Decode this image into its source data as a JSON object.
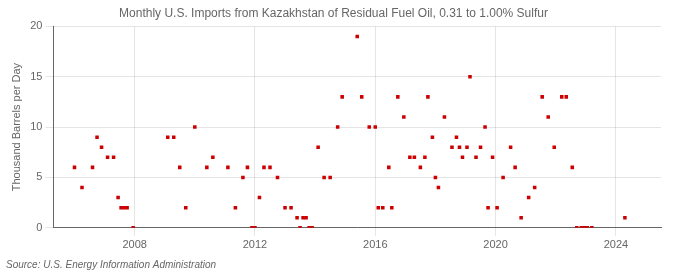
{
  "chart_data": {
    "type": "scatter",
    "title": "Monthly U.S. Imports from Kazakhstan of Residual Fuel Oil, 0.31 to 1.00% Sulfur",
    "ylabel": "Thousand Barrels per Day",
    "annotation": "Source: U.S. Energy Information Administration",
    "color": "#cc0000",
    "marker": "square",
    "grid": true,
    "xlim": [
      2005.3,
      2025.5
    ],
    "xticks": [
      2008,
      2012,
      2016,
      2020,
      2024
    ],
    "ylim": [
      0,
      20
    ],
    "yticks": [
      0,
      5,
      10,
      15,
      20
    ],
    "x": [
      2006.0,
      2006.25,
      2006.6,
      2006.75,
      2006.9,
      2007.1,
      2007.3,
      2007.45,
      2007.55,
      2007.65,
      2007.75,
      2007.95,
      2009.1,
      2009.3,
      2009.5,
      2009.7,
      2010.0,
      2010.4,
      2010.6,
      2011.1,
      2011.35,
      2011.6,
      2011.75,
      2011.9,
      2012.0,
      2012.15,
      2012.3,
      2012.5,
      2012.75,
      2013.0,
      2013.2,
      2013.4,
      2013.5,
      2013.6,
      2013.7,
      2013.8,
      2013.9,
      2014.1,
      2014.3,
      2014.5,
      2014.75,
      2014.9,
      2015.4,
      2015.55,
      2015.8,
      2016.0,
      2016.1,
      2016.25,
      2016.45,
      2016.55,
      2016.75,
      2016.95,
      2017.15,
      2017.3,
      2017.5,
      2017.65,
      2017.75,
      2017.9,
      2018.0,
      2018.1,
      2018.3,
      2018.55,
      2018.7,
      2018.8,
      2018.9,
      2019.05,
      2019.15,
      2019.35,
      2019.5,
      2019.65,
      2019.75,
      2019.9,
      2020.05,
      2020.25,
      2020.5,
      2020.65,
      2020.85,
      2021.1,
      2021.3,
      2021.55,
      2021.75,
      2021.95,
      2022.2,
      2022.35,
      2022.55,
      2022.7,
      2022.85,
      2022.95,
      2023.05,
      2023.2,
      2024.3
    ],
    "values": [
      6,
      4,
      6,
      9,
      8,
      7,
      7,
      3,
      2,
      2,
      2,
      0,
      9,
      9,
      6,
      2,
      10,
      6,
      7,
      6,
      2,
      5,
      6,
      0,
      0,
      3,
      6,
      6,
      5,
      2,
      2,
      1,
      0,
      1,
      1,
      0,
      0,
      8,
      5,
      5,
      10,
      13,
      19,
      13,
      10,
      10,
      2,
      2,
      6,
      2,
      13,
      11,
      7,
      7,
      6,
      7,
      13,
      9,
      5,
      4,
      11,
      8,
      9,
      8,
      7,
      8,
      15,
      7,
      8,
      10,
      2,
      7,
      2,
      5,
      8,
      6,
      1,
      3,
      4,
      13,
      11,
      8,
      13,
      13,
      6,
      0,
      0,
      0,
      0,
      0,
      1
    ]
  }
}
